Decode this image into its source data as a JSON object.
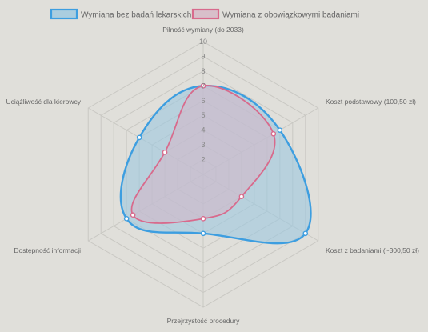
{
  "chart_data": {
    "type": "radar",
    "categories": [
      "Pilność wymiany (do 2033)",
      "Koszt podstawowy (100,50 zł)",
      "Koszt z badaniami (~300,50 zł)",
      "Przejrzystość procedury",
      "Dostępność informacji",
      "Uciążliwość dla kierowcy"
    ],
    "ticks": [
      "2",
      "3",
      "4",
      "5",
      "6",
      "7",
      "8",
      "9",
      "10"
    ],
    "r_range": [
      1,
      10
    ],
    "grid": true,
    "legend_position": "top",
    "series": [
      {
        "name": "Wymiana bez badań lekarskich",
        "values": [
          7,
          7,
          9,
          5,
          7,
          6
        ],
        "stroke": "#3d9ee0",
        "fill": "#9cc8e0"
      },
      {
        "name": "Wymiana z obowiązkowymi badaniami",
        "values": [
          7,
          6.5,
          4,
          4,
          6.5,
          4
        ],
        "stroke": "#d86a8c",
        "fill": "#d6b6c6"
      }
    ]
  }
}
